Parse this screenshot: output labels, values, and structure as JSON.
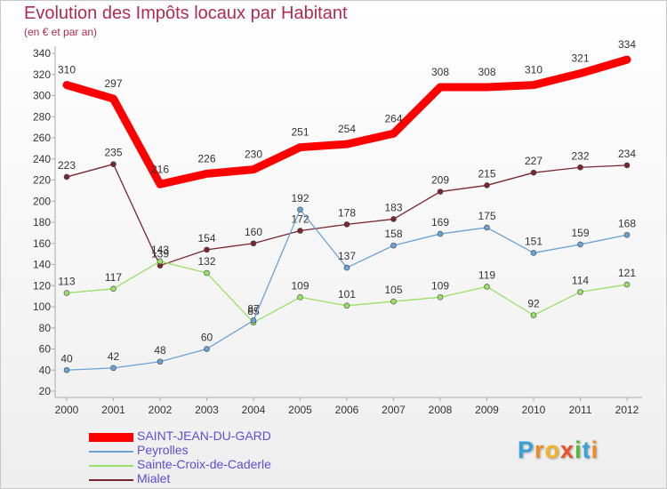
{
  "chart_data": {
    "type": "line",
    "title": "Evolution des Impôts locaux par Habitant",
    "subtitle": "(en € et par an)",
    "xlabel": "",
    "ylabel": "",
    "categories": [
      "2000",
      "2001",
      "2002",
      "2003",
      "2004",
      "2005",
      "2006",
      "2007",
      "2008",
      "2009",
      "2010",
      "2011",
      "2012"
    ],
    "ylim": [
      20,
      340
    ],
    "yticks": [
      20,
      40,
      60,
      80,
      100,
      120,
      140,
      160,
      180,
      200,
      220,
      240,
      260,
      280,
      300,
      320,
      340
    ],
    "grid": false,
    "legend_position": "bottom-left",
    "series": [
      {
        "name": "SAINT-JEAN-DU-GARD",
        "color": "#ff0000",
        "values": [
          310,
          297,
          216,
          226,
          230,
          251,
          254,
          264,
          308,
          308,
          310,
          321,
          334
        ]
      },
      {
        "name": "Peyrolles",
        "color": "#6aa2d6",
        "values": [
          40,
          42,
          48,
          60,
          87,
          192,
          137,
          158,
          169,
          175,
          151,
          159,
          168
        ]
      },
      {
        "name": "Sainte-Croix-de-Caderle",
        "color": "#99e066",
        "values": [
          113,
          117,
          143,
          132,
          85,
          109,
          101,
          105,
          109,
          119,
          92,
          114,
          121
        ]
      },
      {
        "name": "Mialet",
        "color": "#7a2630",
        "values": [
          223,
          235,
          139,
          154,
          160,
          172,
          178,
          183,
          209,
          215,
          227,
          232,
          234
        ]
      }
    ]
  },
  "logo_letters": [
    "P",
    "r",
    "o",
    "x",
    "i",
    "t",
    "i"
  ]
}
